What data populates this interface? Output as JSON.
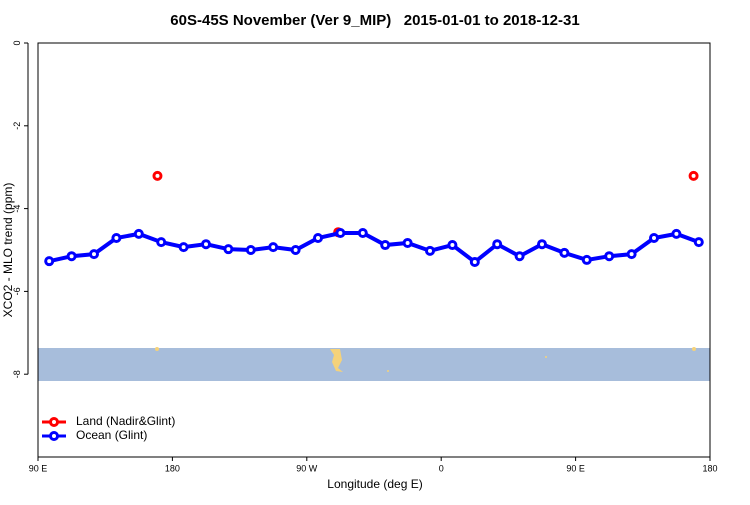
{
  "chart_data": {
    "type": "line",
    "title": "60S-45S November (Ver 9_MIP)   2015-01-01 to 2018-12-31",
    "x_label": "Longitude (deg E)",
    "y_label": "XCO2 - MLO trend (ppm)",
    "xlim": [
      90,
      540
    ],
    "xticks": [
      {
        "value": 90,
        "label": "90 E"
      },
      180,
      {
        "value": 270,
        "label": "90 W"
      },
      {
        "value": 360,
        "label": "0"
      },
      {
        "value": 450,
        "label": "90 E"
      },
      {
        "value": 540,
        "label": "180"
      }
    ],
    "ylim": [
      -10,
      0
    ],
    "yticks": [
      0,
      -2,
      -4,
      -6,
      -8
    ],
    "legend_position": "bottom-left",
    "series": [
      {
        "name": "Land (Nadir&Glint)",
        "color": "#ff0000",
        "lines": false,
        "x": [
          170,
          291,
          529
        ],
        "values": [
          -3.21,
          -4.57,
          -3.21
        ]
      },
      {
        "name": "Ocean (Glint)",
        "color": "#0000ff",
        "lines": true,
        "x": [
          97.5,
          112.5,
          127.5,
          142.5,
          157.5,
          172.5,
          187.5,
          202.5,
          217.5,
          232.5,
          247.5,
          262.5,
          277.5,
          292.5,
          307.5,
          322.5,
          337.5,
          352.5,
          367.5,
          382.5,
          397.5,
          412.5,
          427.5,
          442.5,
          457.5,
          472.5,
          487.5,
          502.5,
          517.5,
          532.5
        ],
        "values": [
          -5.27,
          -5.15,
          -5.1,
          -4.71,
          -4.61,
          -4.81,
          -4.93,
          -4.86,
          -4.98,
          -5.0,
          -4.93,
          -5.0,
          -4.71,
          -4.59,
          -4.59,
          -4.88,
          -4.83,
          -5.02,
          -4.88,
          -5.29,
          -4.86,
          -5.15,
          -4.86,
          -5.07,
          -5.24,
          -5.15,
          -5.1,
          -4.71,
          -4.61,
          -4.81
        ]
      }
    ]
  }
}
